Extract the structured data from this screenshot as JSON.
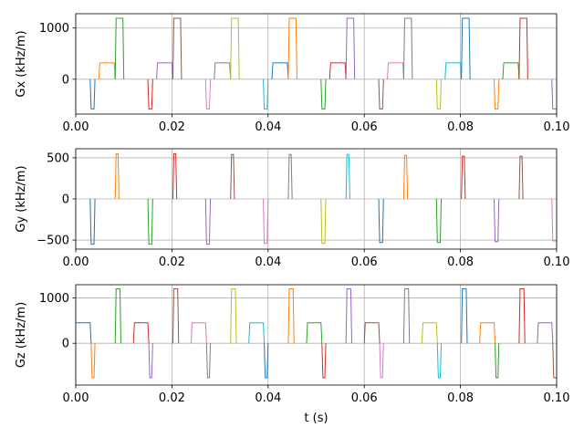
{
  "chart_data": [
    {
      "type": "line",
      "ylabel": "Gx (kHz/m)",
      "xlabel": "",
      "xlim": [
        0.0,
        0.1
      ],
      "ylim": [
        -680,
        1280
      ],
      "x_ticks": [
        0.0,
        0.02,
        0.04,
        0.06,
        0.08,
        0.1
      ],
      "x_tick_labels": [
        "0.00",
        "0.02",
        "0.04",
        "0.06",
        "0.08",
        "0.10"
      ],
      "y_ticks": [
        0,
        1000
      ],
      "y_tick_labels": [
        "0",
        "1000"
      ],
      "grid": true,
      "segments": [
        {
          "color": "#1f77b4",
          "x": [
            0.003,
            0.0032,
            0.0038,
            0.004
          ],
          "y": [
            0,
            -580,
            -580,
            0
          ]
        },
        {
          "color": "#ff7f0e",
          "x": [
            0.0048,
            0.005,
            0.008,
            0.0082
          ],
          "y": [
            0,
            320,
            320,
            0
          ]
        },
        {
          "color": "#2ca02c",
          "x": [
            0.0082,
            0.0084,
            0.0098,
            0.01
          ],
          "y": [
            0,
            1190,
            1190,
            0
          ]
        },
        {
          "color": "#d62728",
          "x": [
            0.015,
            0.0152,
            0.0158,
            0.016
          ],
          "y": [
            0,
            -580,
            -580,
            0
          ]
        },
        {
          "color": "#9467bd",
          "x": [
            0.0168,
            0.017,
            0.02,
            0.0202
          ],
          "y": [
            0,
            320,
            320,
            0
          ]
        },
        {
          "color": "#8c564b",
          "x": [
            0.0202,
            0.0204,
            0.0218,
            0.022
          ],
          "y": [
            0,
            1190,
            1190,
            0
          ]
        },
        {
          "color": "#e377c2",
          "x": [
            0.027,
            0.0272,
            0.0278,
            0.028
          ],
          "y": [
            0,
            -580,
            -580,
            0
          ]
        },
        {
          "color": "#7f7f7f",
          "x": [
            0.0288,
            0.029,
            0.032,
            0.0322
          ],
          "y": [
            0,
            320,
            320,
            0
          ]
        },
        {
          "color": "#bcbd22",
          "x": [
            0.0322,
            0.0324,
            0.0338,
            0.034
          ],
          "y": [
            0,
            1190,
            1190,
            0
          ]
        },
        {
          "color": "#17becf",
          "x": [
            0.039,
            0.0392,
            0.0398,
            0.04
          ],
          "y": [
            0,
            -580,
            -580,
            0
          ]
        },
        {
          "color": "#1f77b4",
          "x": [
            0.0408,
            0.041,
            0.044,
            0.0442
          ],
          "y": [
            0,
            320,
            320,
            0
          ]
        },
        {
          "color": "#ff7f0e",
          "x": [
            0.0442,
            0.0444,
            0.0458,
            0.046
          ],
          "y": [
            0,
            1190,
            1190,
            0
          ]
        },
        {
          "color": "#2ca02c",
          "x": [
            0.051,
            0.0512,
            0.0518,
            0.052
          ],
          "y": [
            0,
            -580,
            -580,
            0
          ]
        },
        {
          "color": "#d62728",
          "x": [
            0.0528,
            0.053,
            0.056,
            0.0562
          ],
          "y": [
            0,
            320,
            320,
            0
          ]
        },
        {
          "color": "#9467bd",
          "x": [
            0.0562,
            0.0564,
            0.0578,
            0.058
          ],
          "y": [
            0,
            1190,
            1190,
            0
          ]
        },
        {
          "color": "#8c564b",
          "x": [
            0.063,
            0.0632,
            0.0638,
            0.064
          ],
          "y": [
            0,
            -580,
            -580,
            0
          ]
        },
        {
          "color": "#e377c2",
          "x": [
            0.0648,
            0.065,
            0.068,
            0.0682
          ],
          "y": [
            0,
            320,
            320,
            0
          ]
        },
        {
          "color": "#7f7f7f",
          "x": [
            0.0682,
            0.0684,
            0.0698,
            0.07
          ],
          "y": [
            0,
            1190,
            1190,
            0
          ]
        },
        {
          "color": "#bcbd22",
          "x": [
            0.075,
            0.0752,
            0.0758,
            0.076
          ],
          "y": [
            0,
            -580,
            -580,
            0
          ]
        },
        {
          "color": "#17becf",
          "x": [
            0.0768,
            0.077,
            0.08,
            0.0802
          ],
          "y": [
            0,
            320,
            320,
            0
          ]
        },
        {
          "color": "#1f77b4",
          "x": [
            0.0802,
            0.0804,
            0.0818,
            0.082
          ],
          "y": [
            0,
            1190,
            1190,
            0
          ]
        },
        {
          "color": "#ff7f0e",
          "x": [
            0.087,
            0.0872,
            0.0878,
            0.088
          ],
          "y": [
            0,
            -580,
            -580,
            0
          ]
        },
        {
          "color": "#2ca02c",
          "x": [
            0.0888,
            0.089,
            0.092,
            0.0922
          ],
          "y": [
            0,
            320,
            320,
            0
          ]
        },
        {
          "color": "#d62728",
          "x": [
            0.0922,
            0.0924,
            0.0938,
            0.094
          ],
          "y": [
            0,
            1190,
            1190,
            0
          ]
        },
        {
          "color": "#9467bd",
          "x": [
            0.099,
            0.0992,
            0.1
          ],
          "y": [
            0,
            -580,
            -580
          ]
        }
      ]
    },
    {
      "type": "line",
      "ylabel": "Gy (kHz/m)",
      "xlabel": "",
      "xlim": [
        0.0,
        0.1
      ],
      "ylim": [
        -610,
        610
      ],
      "x_ticks": [
        0.0,
        0.02,
        0.04,
        0.06,
        0.08,
        0.1
      ],
      "x_tick_labels": [
        "0.00",
        "0.02",
        "0.04",
        "0.06",
        "0.08",
        "0.10"
      ],
      "y_ticks": [
        -500,
        0,
        500
      ],
      "y_tick_labels": [
        "−500",
        "0",
        "500"
      ],
      "grid": true,
      "segments": [
        {
          "color": "#1f77b4",
          "x": [
            0.003,
            0.0032,
            0.0038,
            0.004
          ],
          "y": [
            0,
            -550,
            -550,
            0
          ]
        },
        {
          "color": "#ff7f0e",
          "x": [
            0.0082,
            0.0084,
            0.0088,
            0.009
          ],
          "y": [
            0,
            550,
            550,
            0
          ]
        },
        {
          "color": "#2ca02c",
          "x": [
            0.015,
            0.0152,
            0.0158,
            0.016
          ],
          "y": [
            0,
            -550,
            -550,
            0
          ]
        },
        {
          "color": "#d62728",
          "x": [
            0.0202,
            0.0204,
            0.0208,
            0.021
          ],
          "y": [
            0,
            550,
            550,
            0
          ]
        },
        {
          "color": "#9467bd",
          "x": [
            0.027,
            0.0272,
            0.0278,
            0.028
          ],
          "y": [
            0,
            -550,
            -550,
            0
          ]
        },
        {
          "color": "#8c564b",
          "x": [
            0.0322,
            0.0324,
            0.0328,
            0.033
          ],
          "y": [
            0,
            540,
            540,
            0
          ]
        },
        {
          "color": "#e377c2",
          "x": [
            0.039,
            0.0392,
            0.0398,
            0.04
          ],
          "y": [
            0,
            -540,
            -540,
            0
          ]
        },
        {
          "color": "#7f7f7f",
          "x": [
            0.0442,
            0.0444,
            0.0448,
            0.045
          ],
          "y": [
            0,
            540,
            540,
            0
          ]
        },
        {
          "color": "#bcbd22",
          "x": [
            0.051,
            0.0512,
            0.0518,
            0.052
          ],
          "y": [
            0,
            -540,
            -540,
            0
          ]
        },
        {
          "color": "#17becf",
          "x": [
            0.0562,
            0.0564,
            0.0568,
            0.057
          ],
          "y": [
            0,
            540,
            540,
            0
          ]
        },
        {
          "color": "#1f77b4",
          "x": [
            0.063,
            0.0632,
            0.0638,
            0.064
          ],
          "y": [
            0,
            -530,
            -530,
            0
          ]
        },
        {
          "color": "#ff7f0e",
          "x": [
            0.0682,
            0.0684,
            0.0688,
            0.069
          ],
          "y": [
            0,
            530,
            530,
            0
          ]
        },
        {
          "color": "#2ca02c",
          "x": [
            0.075,
            0.0752,
            0.0758,
            0.076
          ],
          "y": [
            0,
            -530,
            -530,
            0
          ]
        },
        {
          "color": "#d62728",
          "x": [
            0.0802,
            0.0804,
            0.0808,
            0.081
          ],
          "y": [
            0,
            520,
            520,
            0
          ]
        },
        {
          "color": "#9467bd",
          "x": [
            0.087,
            0.0872,
            0.0878,
            0.088
          ],
          "y": [
            0,
            -520,
            -520,
            0
          ]
        },
        {
          "color": "#8c564b",
          "x": [
            0.0922,
            0.0924,
            0.0928,
            0.093
          ],
          "y": [
            0,
            520,
            520,
            0
          ]
        },
        {
          "color": "#e377c2",
          "x": [
            0.099,
            0.0992,
            0.1
          ],
          "y": [
            0,
            -510,
            -510
          ]
        }
      ]
    },
    {
      "type": "line",
      "ylabel": "Gz (kHz/m)",
      "xlabel": "t (s)",
      "xlim": [
        0.0,
        0.1
      ],
      "ylim": [
        -920,
        1290
      ],
      "x_ticks": [
        0.0,
        0.02,
        0.04,
        0.06,
        0.08,
        0.1
      ],
      "x_tick_labels": [
        "0.00",
        "0.02",
        "0.04",
        "0.06",
        "0.08",
        "0.10"
      ],
      "y_ticks": [
        0,
        1000
      ],
      "y_tick_labels": [
        "0",
        "1000"
      ],
      "grid": true,
      "segments": [
        {
          "color": "#1f77b4",
          "x": [
            0.0,
            0.003,
            0.0032
          ],
          "y": [
            450,
            450,
            0
          ]
        },
        {
          "color": "#ff7f0e",
          "x": [
            0.0032,
            0.0034,
            0.0038,
            0.004
          ],
          "y": [
            0,
            -760,
            -760,
            0
          ]
        },
        {
          "color": "#2ca02c",
          "x": [
            0.0082,
            0.0084,
            0.0092,
            0.0094
          ],
          "y": [
            0,
            1200,
            1200,
            0
          ]
        },
        {
          "color": "#d62728",
          "x": [
            0.012,
            0.0122,
            0.015,
            0.0152
          ],
          "y": [
            0,
            450,
            450,
            0
          ]
        },
        {
          "color": "#9467bd",
          "x": [
            0.0152,
            0.0154,
            0.0158,
            0.016
          ],
          "y": [
            0,
            -760,
            -760,
            0
          ]
        },
        {
          "color": "#8c564b",
          "x": [
            0.0202,
            0.0204,
            0.0212,
            0.0214
          ],
          "y": [
            0,
            1200,
            1200,
            0
          ]
        },
        {
          "color": "#e377c2",
          "x": [
            0.024,
            0.0242,
            0.027,
            0.0272
          ],
          "y": [
            0,
            450,
            450,
            0
          ]
        },
        {
          "color": "#7f7f7f",
          "x": [
            0.0272,
            0.0274,
            0.0278,
            0.028
          ],
          "y": [
            0,
            -760,
            -760,
            0
          ]
        },
        {
          "color": "#bcbd22",
          "x": [
            0.0322,
            0.0324,
            0.0332,
            0.0334
          ],
          "y": [
            0,
            1200,
            1200,
            0
          ]
        },
        {
          "color": "#17becf",
          "x": [
            0.036,
            0.0362,
            0.039,
            0.0392
          ],
          "y": [
            0,
            450,
            450,
            0
          ]
        },
        {
          "color": "#1f77b4",
          "x": [
            0.0392,
            0.0394,
            0.0398,
            0.04
          ],
          "y": [
            0,
            -760,
            -760,
            0
          ]
        },
        {
          "color": "#ff7f0e",
          "x": [
            0.0442,
            0.0444,
            0.0452,
            0.0454
          ],
          "y": [
            0,
            1200,
            1200,
            0
          ]
        },
        {
          "color": "#2ca02c",
          "x": [
            0.048,
            0.0482,
            0.051,
            0.0512
          ],
          "y": [
            0,
            450,
            450,
            0
          ]
        },
        {
          "color": "#d62728",
          "x": [
            0.0512,
            0.0514,
            0.0518,
            0.052
          ],
          "y": [
            0,
            -760,
            -760,
            0
          ]
        },
        {
          "color": "#9467bd",
          "x": [
            0.0562,
            0.0564,
            0.0572,
            0.0574
          ],
          "y": [
            0,
            1200,
            1200,
            0
          ]
        },
        {
          "color": "#8c564b",
          "x": [
            0.06,
            0.0602,
            0.063,
            0.0632
          ],
          "y": [
            0,
            450,
            450,
            0
          ]
        },
        {
          "color": "#e377c2",
          "x": [
            0.0632,
            0.0634,
            0.0638,
            0.064
          ],
          "y": [
            0,
            -760,
            -760,
            0
          ]
        },
        {
          "color": "#7f7f7f",
          "x": [
            0.0682,
            0.0684,
            0.0692,
            0.0694
          ],
          "y": [
            0,
            1200,
            1200,
            0
          ]
        },
        {
          "color": "#bcbd22",
          "x": [
            0.072,
            0.0722,
            0.075,
            0.0752
          ],
          "y": [
            0,
            450,
            450,
            0
          ]
        },
        {
          "color": "#17becf",
          "x": [
            0.0752,
            0.0754,
            0.0758,
            0.076
          ],
          "y": [
            0,
            -760,
            -760,
            0
          ]
        },
        {
          "color": "#1f77b4",
          "x": [
            0.0802,
            0.0804,
            0.0812,
            0.0814
          ],
          "y": [
            0,
            1200,
            1200,
            0
          ]
        },
        {
          "color": "#ff7f0e",
          "x": [
            0.084,
            0.0842,
            0.087,
            0.0872
          ],
          "y": [
            0,
            450,
            450,
            0
          ]
        },
        {
          "color": "#2ca02c",
          "x": [
            0.0872,
            0.0874,
            0.0878,
            0.088
          ],
          "y": [
            0,
            -760,
            -760,
            0
          ]
        },
        {
          "color": "#d62728",
          "x": [
            0.0922,
            0.0924,
            0.0932,
            0.0934
          ],
          "y": [
            0,
            1200,
            1200,
            0
          ]
        },
        {
          "color": "#9467bd",
          "x": [
            0.096,
            0.0962,
            0.099,
            0.0992
          ],
          "y": [
            0,
            450,
            450,
            0
          ]
        },
        {
          "color": "#8c564b",
          "x": [
            0.0992,
            0.0994,
            0.1
          ],
          "y": [
            0,
            -760,
            -760
          ]
        }
      ]
    }
  ]
}
